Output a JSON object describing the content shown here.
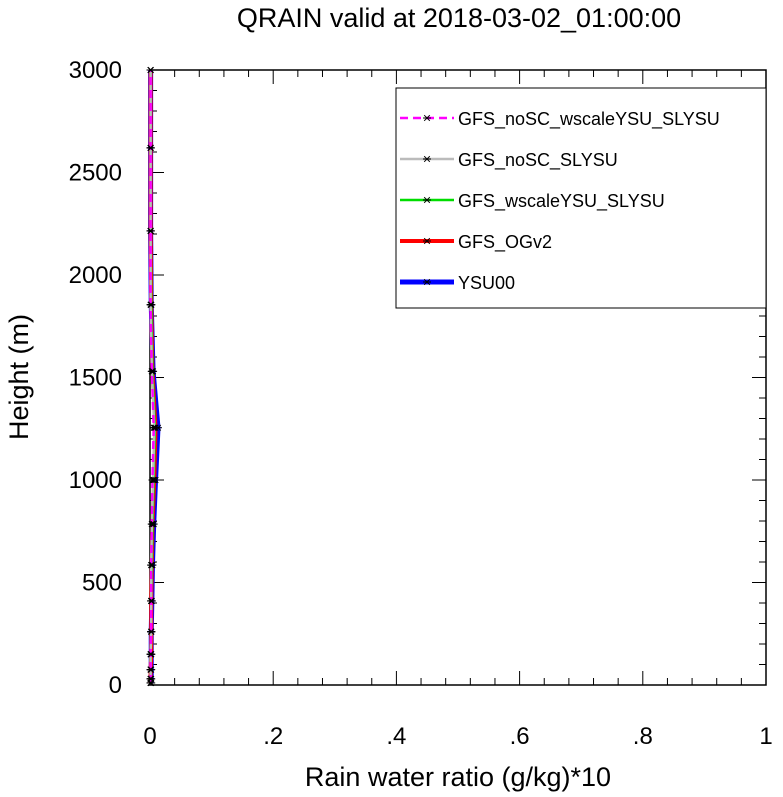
{
  "chart_data": {
    "type": "line",
    "title": "QRAIN valid at 2018-03-02_01:00:00",
    "xlabel": "Rain water ratio (g/kg)*10",
    "ylabel": "Height (m)",
    "xlim": [
      0,
      1
    ],
    "ylim": [
      0,
      3000
    ],
    "x_ticks": [
      0,
      0.2,
      0.4,
      0.6,
      0.8,
      1
    ],
    "x_tick_labels": [
      "0",
      ".2",
      ".4",
      ".6",
      ".8",
      "1"
    ],
    "y_ticks": [
      0,
      500,
      1000,
      1500,
      2000,
      2500,
      3000
    ],
    "y_tick_labels": [
      "0",
      "500",
      "1000",
      "1500",
      "2000",
      "2500",
      "3000"
    ],
    "grid": false,
    "legend_position": "top-right",
    "heights": [
      10,
      30,
      75,
      150,
      260,
      410,
      585,
      785,
      1000,
      1255,
      1530,
      1855,
      2215,
      2620,
      3000
    ],
    "series": [
      {
        "name": "GFS_noSC_wscaleYSU_SLYSU",
        "color": "#ff00ff",
        "dash": "dashed",
        "values": [
          0.001,
          0.001,
          0.001,
          0.001,
          0.002,
          0.002,
          0.002,
          0.003,
          0.004,
          0.006,
          0.003,
          0.001,
          0.001,
          0.001,
          0.001
        ]
      },
      {
        "name": "GFS_noSC_SLYSU",
        "color": "#bbbbbb",
        "dash": "solid",
        "values": [
          0.001,
          0.001,
          0.001,
          0.001,
          0.002,
          0.002,
          0.002,
          0.003,
          0.005,
          0.007,
          0.003,
          0.001,
          0.001,
          0.001,
          0.001
        ]
      },
      {
        "name": "GFS_wscaleYSU_SLYSU",
        "color": "#00dd00",
        "dash": "solid",
        "values": [
          0.001,
          0.001,
          0.001,
          0.001,
          0.002,
          0.002,
          0.003,
          0.004,
          0.006,
          0.008,
          0.004,
          0.002,
          0.001,
          0.001,
          0.001
        ]
      },
      {
        "name": "GFS_OGv2",
        "color": "#ff0000",
        "dash": "solid",
        "values": [
          0.001,
          0.001,
          0.001,
          0.002,
          0.002,
          0.002,
          0.003,
          0.004,
          0.007,
          0.009,
          0.004,
          0.002,
          0.001,
          0.001,
          0.001
        ]
      },
      {
        "name": "YSU00",
        "color": "#0000ff",
        "dash": "solid",
        "values": [
          0.002,
          0.002,
          0.002,
          0.002,
          0.002,
          0.003,
          0.004,
          0.006,
          0.009,
          0.013,
          0.005,
          0.002,
          0.001,
          0.001,
          0.001
        ]
      }
    ]
  }
}
